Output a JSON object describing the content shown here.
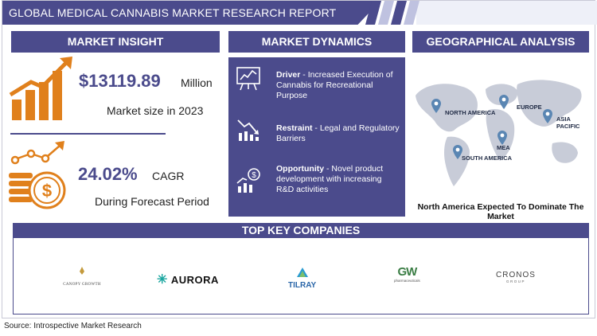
{
  "header": {
    "title": "GLOBAL MEDICAL CANNABIS MARKET RESEARCH REPORT"
  },
  "market_insight": {
    "heading": "MARKET INSIGHT",
    "market_size_value": "$13119.89",
    "market_size_unit": "Million",
    "market_size_caption": "Market size in 2023",
    "cagr_value": "24.02%",
    "cagr_unit": "CAGR",
    "cagr_caption": "During Forecast Period"
  },
  "market_dynamics": {
    "heading": "MARKET DYNAMICS",
    "items": [
      {
        "label": "Driver",
        "text": " - Increased Execution of Cannabis for Recreational Purpose",
        "icon": "chart-board-icon"
      },
      {
        "label": "Restraint",
        "text": " - Legal and Regulatory Barriers",
        "icon": "declining-chart-icon"
      },
      {
        "label": "Opportunity",
        "text": " - Novel product development with increasing R&D activities",
        "icon": "growth-money-icon"
      }
    ]
  },
  "geographical_analysis": {
    "heading": "GEOGRAPHICAL ANALYSIS",
    "regions": [
      "NORTH AMERICA",
      "EUROPE",
      "ASIA PACIFIC",
      "MEA",
      "SOUTH AMERICA"
    ],
    "caption": "North America  Expected To Dominate The Market"
  },
  "companies": {
    "heading": "TOP KEY COMPANIES",
    "list": [
      {
        "name": "CANOPY GROWTH"
      },
      {
        "name": "AURORA"
      },
      {
        "name": "TILRAY"
      },
      {
        "name": "GW",
        "sub": "pharmaceuticals"
      },
      {
        "name": "CRONOS",
        "sub": "GROUP"
      }
    ]
  },
  "source": "Source: Introspective Market Research",
  "colors": {
    "primary": "#4b4b8c",
    "accent_orange": "#e0801c",
    "map_gray": "#c8ccd8",
    "pin_blue": "#5a86b3"
  }
}
